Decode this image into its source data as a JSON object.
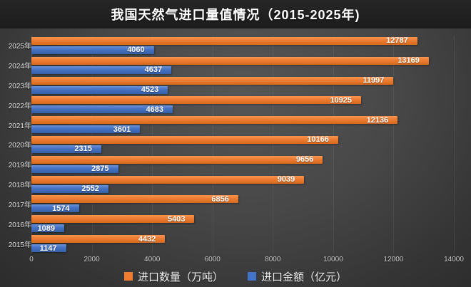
{
  "title": "我国天然气进口量值情况（2015-2025年)",
  "colors": {
    "volume_series": "#ed7d31",
    "value_series": "#4472c4",
    "title_bar": "#1c1c1c",
    "background": "#474747",
    "label_text": "#ffffff"
  },
  "legend": [
    {
      "label": "进口数量（万吨）",
      "color": "#ed7d31"
    },
    {
      "label": "进口金额（亿元）",
      "color": "#4472c4"
    }
  ],
  "chart_data": {
    "type": "bar",
    "orientation": "horizontal",
    "title": "我国天然气进口量值情况（2015-2025年)",
    "categories": [
      "2025年",
      "2024年",
      "2023年",
      "2022年",
      "2021年",
      "2020年",
      "2019年",
      "2018年",
      "2017年",
      "2016年",
      "2015年"
    ],
    "series": [
      {
        "name": "进口数量（万吨）",
        "color": "#ed7d31",
        "values": [
          12787,
          13169,
          11997,
          10925,
          12136,
          10166,
          9656,
          9039,
          6856,
          5403,
          4432
        ]
      },
      {
        "name": "进口金额（亿元）",
        "color": "#4472c4",
        "values": [
          4060,
          4637,
          4523,
          4683,
          3601,
          2315,
          2875,
          2552,
          1574,
          1089,
          1147
        ]
      }
    ],
    "xlim": [
      0,
      14000
    ],
    "x_ticks": [
      0,
      2000,
      4000,
      6000,
      8000,
      10000,
      12000,
      14000
    ],
    "grid": true,
    "legend_position": "bottom"
  }
}
